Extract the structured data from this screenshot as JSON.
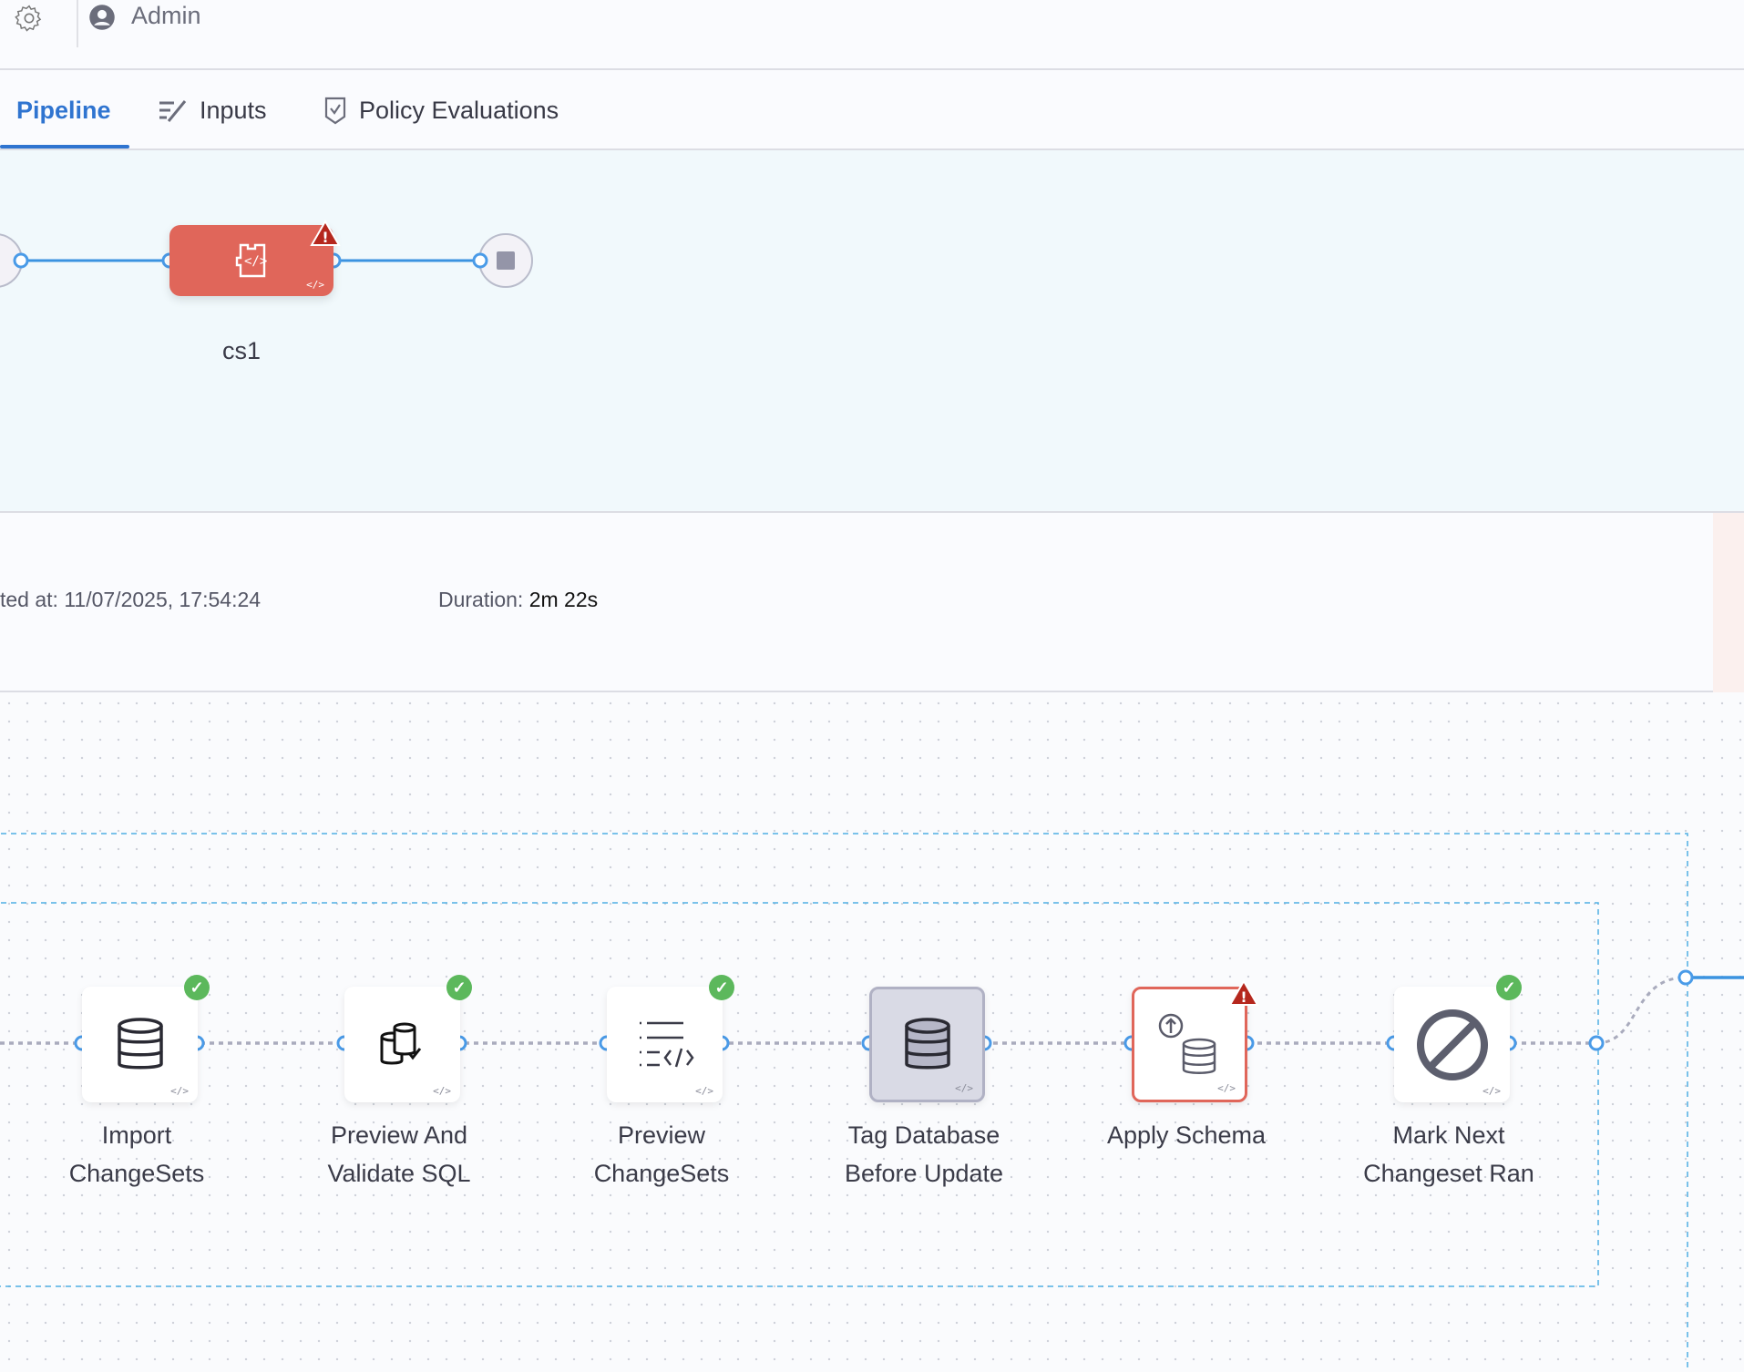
{
  "header": {
    "user": "Admin",
    "icons": [
      "gear-icon",
      "user-avatar-icon"
    ]
  },
  "tabs": [
    {
      "label": "Pipeline",
      "active": true
    },
    {
      "label": "Inputs",
      "icon": "edit-lines-icon"
    },
    {
      "label": "Policy Evaluations",
      "icon": "shield-check-icon"
    }
  ],
  "pipeline": {
    "stage": {
      "name": "cs1",
      "status": "warning",
      "color": "#e0665a"
    }
  },
  "info": {
    "started_at": "ted at: 11/07/2025, 17:54:24",
    "duration_label": "Duration:",
    "duration_value": "2m 22s"
  },
  "steps": [
    {
      "line1": "Import",
      "line2": "ChangeSets",
      "status": "success",
      "icon": "database-icon"
    },
    {
      "line1": "Preview And",
      "line2": "Validate SQL",
      "status": "success",
      "icon": "database-check-icon"
    },
    {
      "line1": "Preview",
      "line2": "ChangeSets",
      "status": "success",
      "icon": "list-code-icon"
    },
    {
      "line1": "Tag Database",
      "line2": "Before Update",
      "status": "selected",
      "icon": "database-icon"
    },
    {
      "line1": "Apply Schema",
      "line2": "",
      "status": "warning",
      "icon": "database-upload-icon"
    },
    {
      "line1": "Mark Next",
      "line2": "Changeset Ran",
      "status": "success",
      "icon": "ban-icon"
    }
  ],
  "colors": {
    "accent": "#2f74d0",
    "success": "#5cb85c",
    "error": "#e0665a",
    "warning": "#b5271d",
    "port": "#4a9be8"
  }
}
